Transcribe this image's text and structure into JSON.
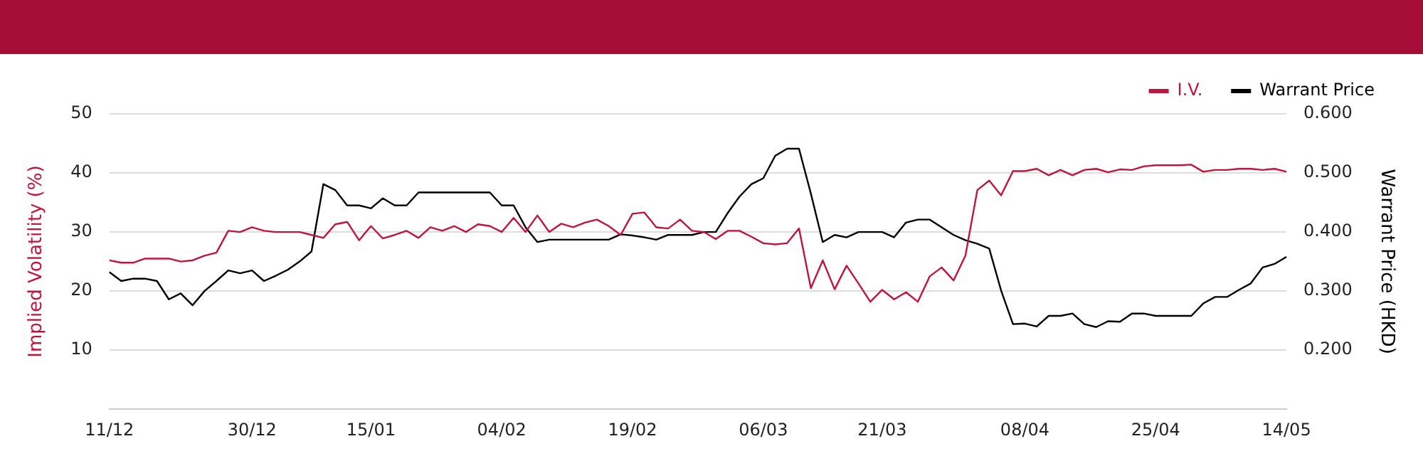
{
  "chart_data": {
    "type": "line",
    "categories": [
      "11/12",
      null,
      null,
      null,
      null,
      null,
      null,
      null,
      null,
      null,
      null,
      null,
      "30/12",
      null,
      null,
      null,
      null,
      null,
      null,
      null,
      null,
      null,
      "15/01",
      null,
      null,
      null,
      null,
      null,
      null,
      null,
      null,
      null,
      null,
      "04/02",
      null,
      null,
      null,
      null,
      null,
      null,
      null,
      null,
      null,
      null,
      "19/02",
      null,
      null,
      null,
      null,
      null,
      null,
      null,
      null,
      null,
      null,
      "06/03",
      null,
      null,
      null,
      null,
      null,
      null,
      null,
      null,
      null,
      "21/03",
      null,
      null,
      null,
      null,
      null,
      null,
      null,
      null,
      null,
      null,
      null,
      "08/04",
      null,
      null,
      null,
      null,
      null,
      null,
      null,
      null,
      null,
      null,
      "25/04",
      null,
      null,
      null,
      null,
      null,
      null,
      null,
      null,
      null,
      null,
      "14/05"
    ],
    "series": [
      {
        "name": "I.V.",
        "color": "#c0143c",
        "axis": "y",
        "values": [
          25.2,
          24.8,
          24.8,
          25.5,
          25.5,
          25.5,
          25.0,
          25.2,
          26.0,
          26.5,
          30.2,
          30.0,
          30.8,
          30.2,
          30.0,
          30.0,
          30.0,
          29.5,
          29.0,
          31.3,
          31.7,
          28.6,
          31.0,
          28.9,
          29.5,
          30.2,
          29.0,
          30.8,
          30.2,
          31.0,
          30.0,
          31.3,
          31.0,
          30.0,
          32.4,
          30.0,
          32.8,
          30.0,
          31.4,
          30.8,
          31.6,
          32.1,
          31.0,
          29.5,
          33.1,
          33.3,
          30.8,
          30.6,
          32.1,
          30.2,
          30.0,
          28.8,
          30.2,
          30.2,
          29.2,
          28.1,
          27.9,
          28.1,
          30.6,
          20.5,
          25.2,
          20.3,
          24.3,
          21.3,
          18.2,
          20.2,
          18.6,
          19.8,
          18.2,
          22.5,
          24.0,
          21.8,
          26.0,
          37.1,
          38.7,
          36.2,
          40.3,
          40.3,
          40.7,
          39.6,
          40.5,
          39.6,
          40.5,
          40.7,
          40.1,
          40.6,
          40.5,
          41.1,
          41.3,
          41.3,
          41.3,
          41.4,
          40.2,
          40.5,
          40.5,
          40.7,
          40.7,
          40.5,
          40.7,
          40.2
        ]
      },
      {
        "name": "Warrant Price",
        "color": "#000000",
        "axis": "y2",
        "values": [
          0.332,
          0.317,
          0.321,
          0.321,
          0.317,
          0.286,
          0.296,
          0.276,
          0.3,
          0.317,
          0.335,
          0.33,
          0.335,
          0.317,
          0.326,
          0.336,
          0.35,
          0.367,
          0.481,
          0.471,
          0.445,
          0.445,
          0.44,
          0.457,
          0.445,
          0.445,
          0.467,
          0.467,
          0.467,
          0.467,
          0.467,
          0.467,
          0.467,
          0.445,
          0.445,
          0.408,
          0.383,
          0.387,
          0.387,
          0.387,
          0.387,
          0.387,
          0.387,
          0.396,
          0.394,
          0.391,
          0.387,
          0.395,
          0.395,
          0.395,
          0.4,
          0.4,
          0.432,
          0.46,
          0.481,
          0.491,
          0.529,
          0.541,
          0.541,
          0.465,
          0.383,
          0.395,
          0.391,
          0.4,
          0.4,
          0.4,
          0.391,
          0.416,
          0.421,
          0.421,
          0.408,
          0.395,
          0.386,
          0.38,
          0.372,
          0.301,
          0.244,
          0.245,
          0.24,
          0.258,
          0.258,
          0.262,
          0.244,
          0.239,
          0.249,
          0.248,
          0.262,
          0.262,
          0.258,
          0.258,
          0.258,
          0.258,
          0.279,
          0.29,
          0.29,
          0.302,
          0.313,
          0.34,
          0.346,
          0.358
        ]
      }
    ],
    "ylabel": "Implied Volatility (%)",
    "y2label": "Warrant Price (HKD)",
    "ylim": [
      0,
      50
    ],
    "yticks": [
      10,
      20,
      30,
      40,
      50
    ],
    "y2lim": [
      0.1,
      0.6
    ],
    "y2ticks": [
      {
        "value": 0.2,
        "label": "0.200"
      },
      {
        "value": 0.3,
        "label": "0.300"
      },
      {
        "value": 0.4,
        "label": "0.400"
      },
      {
        "value": 0.5,
        "label": "0.500"
      },
      {
        "value": 0.6,
        "label": "0.600"
      }
    ],
    "grid": "y",
    "legend": "top right"
  }
}
